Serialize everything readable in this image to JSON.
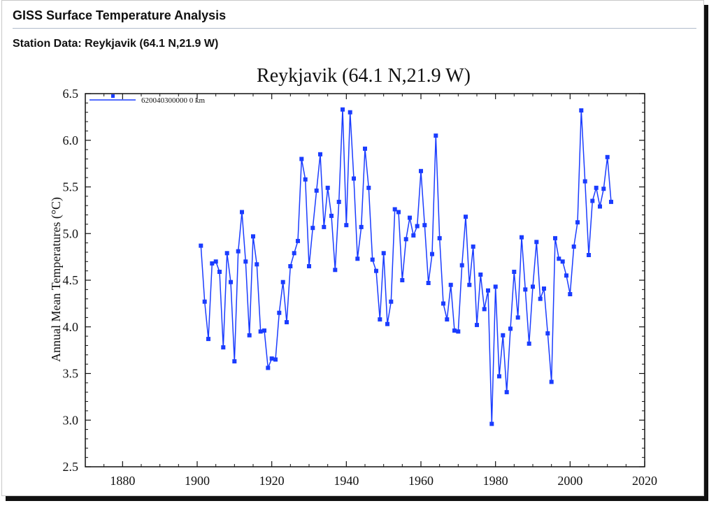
{
  "page": {
    "title": "GISS Surface Temperature Analysis",
    "station_line": "Station Data: Reykjavik (64.1 N,21.9 W)"
  },
  "chart_data": {
    "type": "line",
    "title": "Reykjavik (64.1 N,21.9 W)",
    "xlabel": "",
    "ylabel": "Annual Mean Temperatures (°C)",
    "xlim": [
      1870,
      2020
    ],
    "ylim": [
      2.5,
      6.5
    ],
    "xticks": [
      "1880",
      "1900",
      "1920",
      "1940",
      "1960",
      "1980",
      "2000",
      "2020"
    ],
    "yticks": [
      "2.5",
      "3.0",
      "3.5",
      "4.0",
      "4.5",
      "5.0",
      "5.5",
      "6.0",
      "6.5"
    ],
    "legend_position": "top-left",
    "grid": false,
    "series": [
      {
        "name": "620040300000  0 km",
        "color": "#1a3cff",
        "x": [
          1901,
          1902,
          1903,
          1904,
          1905,
          1906,
          1907,
          1908,
          1909,
          1910,
          1911,
          1912,
          1913,
          1914,
          1915,
          1916,
          1917,
          1918,
          1919,
          1920,
          1921,
          1922,
          1923,
          1924,
          1925,
          1926,
          1927,
          1928,
          1929,
          1930,
          1931,
          1932,
          1933,
          1934,
          1935,
          1936,
          1937,
          1938,
          1939,
          1940,
          1941,
          1942,
          1943,
          1944,
          1945,
          1946,
          1947,
          1948,
          1949,
          1950,
          1951,
          1952,
          1953,
          1954,
          1955,
          1956,
          1957,
          1958,
          1959,
          1960,
          1961,
          1962,
          1963,
          1964,
          1965,
          1966,
          1967,
          1968,
          1969,
          1970,
          1971,
          1972,
          1973,
          1974,
          1975,
          1976,
          1977,
          1978,
          1979,
          1980,
          1981,
          1982,
          1983,
          1984,
          1985,
          1986,
          1987,
          1988,
          1989,
          1990,
          1991,
          1992,
          1993,
          1994,
          1995,
          1996,
          1997,
          1998,
          1999,
          2000,
          2001,
          2002,
          2003,
          2004,
          2005,
          2006,
          2007,
          2008,
          2009,
          2010,
          2011
        ],
        "values": [
          4.87,
          4.27,
          3.87,
          4.68,
          4.7,
          4.59,
          3.78,
          4.79,
          4.48,
          3.63,
          4.81,
          5.23,
          4.7,
          3.91,
          4.97,
          4.67,
          3.95,
          3.96,
          3.56,
          3.66,
          3.65,
          4.15,
          4.48,
          4.05,
          4.65,
          4.79,
          4.92,
          5.8,
          5.58,
          4.65,
          5.06,
          5.46,
          5.85,
          5.07,
          5.49,
          5.19,
          4.61,
          5.34,
          6.33,
          5.09,
          6.3,
          5.59,
          4.73,
          5.07,
          5.91,
          5.49,
          4.72,
          4.6,
          4.08,
          4.79,
          4.03,
          4.27,
          5.26,
          5.23,
          4.5,
          4.94,
          5.17,
          4.98,
          5.08,
          5.67,
          5.09,
          4.47,
          4.78,
          6.05,
          4.95,
          4.25,
          4.08,
          4.45,
          3.96,
          3.95,
          4.66,
          5.18,
          4.45,
          4.86,
          4.02,
          4.56,
          4.19,
          4.39,
          2.96,
          4.43,
          3.47,
          3.91,
          3.3,
          3.98,
          4.59,
          4.1,
          4.96,
          4.4,
          3.82,
          4.43,
          4.91,
          4.3,
          4.41,
          3.93,
          3.41,
          4.95,
          4.73,
          4.7,
          4.55,
          4.35,
          4.86,
          5.12,
          6.32,
          5.56,
          4.77,
          5.35,
          5.49,
          5.29,
          5.48,
          5.82,
          5.34
        ]
      }
    ]
  }
}
